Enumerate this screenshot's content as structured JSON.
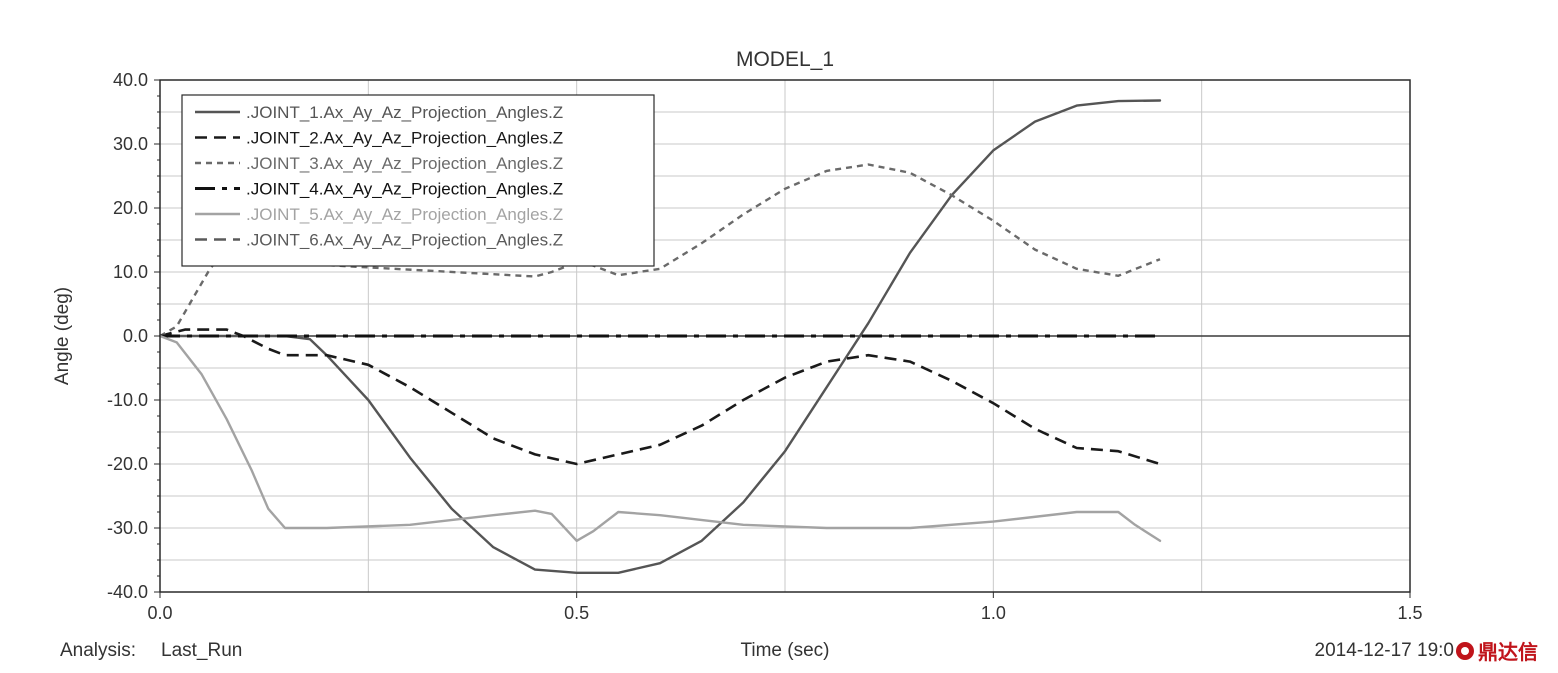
{
  "chart_data": {
    "type": "line",
    "title": "MODEL_1",
    "xlabel": "Time (sec)",
    "ylabel": "Angle (deg)",
    "xlim": [
      0.0,
      1.5
    ],
    "ylim": [
      -40.0,
      40.0
    ],
    "x_ticks": [
      "0.0",
      "0.5",
      "1.0",
      "1.5"
    ],
    "y_ticks": [
      "40.0",
      "30.0",
      "20.0",
      "10.0",
      "0.0",
      "-10.0",
      "-20.0",
      "-30.0",
      "-40.0"
    ],
    "grid": true,
    "legend_position": "top-left",
    "series": [
      {
        "name": ".JOINT_1.Ax_Ay_Az_Projection_Angles.Z",
        "color": "#555555",
        "dash": "solid",
        "points": [
          [
            0.0,
            0.0
          ],
          [
            0.1,
            0.0
          ],
          [
            0.15,
            0.0
          ],
          [
            0.18,
            -0.5
          ],
          [
            0.2,
            -3.0
          ],
          [
            0.25,
            -10.0
          ],
          [
            0.3,
            -19.0
          ],
          [
            0.35,
            -27.0
          ],
          [
            0.4,
            -33.0
          ],
          [
            0.45,
            -36.5
          ],
          [
            0.5,
            -37.0
          ],
          [
            0.55,
            -37.0
          ],
          [
            0.6,
            -35.5
          ],
          [
            0.65,
            -32.0
          ],
          [
            0.7,
            -26.0
          ],
          [
            0.75,
            -18.0
          ],
          [
            0.8,
            -8.0
          ],
          [
            0.85,
            2.0
          ],
          [
            0.9,
            13.0
          ],
          [
            0.95,
            22.0
          ],
          [
            1.0,
            29.0
          ],
          [
            1.05,
            33.5
          ],
          [
            1.1,
            36.0
          ],
          [
            1.15,
            36.7
          ],
          [
            1.2,
            36.8
          ]
        ]
      },
      {
        "name": ".JOINT_2.Ax_Ay_Az_Projection_Angles.Z",
        "color": "#1a1a1a",
        "dash": "dashed",
        "points": [
          [
            0.0,
            0.0
          ],
          [
            0.03,
            1.0
          ],
          [
            0.08,
            1.0
          ],
          [
            0.1,
            0.0
          ],
          [
            0.13,
            -2.0
          ],
          [
            0.15,
            -3.0
          ],
          [
            0.2,
            -3.0
          ],
          [
            0.25,
            -4.5
          ],
          [
            0.3,
            -8.0
          ],
          [
            0.35,
            -12.0
          ],
          [
            0.4,
            -16.0
          ],
          [
            0.45,
            -18.5
          ],
          [
            0.5,
            -20.0
          ],
          [
            0.55,
            -18.5
          ],
          [
            0.6,
            -17.0
          ],
          [
            0.65,
            -14.0
          ],
          [
            0.7,
            -10.0
          ],
          [
            0.75,
            -6.5
          ],
          [
            0.8,
            -4.0
          ],
          [
            0.85,
            -3.0
          ],
          [
            0.9,
            -4.0
          ],
          [
            0.95,
            -7.0
          ],
          [
            1.0,
            -10.5
          ],
          [
            1.05,
            -14.5
          ],
          [
            1.1,
            -17.5
          ],
          [
            1.15,
            -18.0
          ],
          [
            1.2,
            -20.0
          ]
        ]
      },
      {
        "name": ".JOINT_3.Ax_Ay_Az_Projection_Angles.Z",
        "color": "#6a6a6a",
        "dash": "dotted",
        "points": [
          [
            0.0,
            0.0
          ],
          [
            0.02,
            1.5
          ],
          [
            0.04,
            6.0
          ],
          [
            0.06,
            10.5
          ],
          [
            0.07,
            12.0
          ],
          [
            0.45,
            9.3
          ],
          [
            0.47,
            10.0
          ],
          [
            0.5,
            11.5
          ],
          [
            0.52,
            11.0
          ],
          [
            0.55,
            9.5
          ],
          [
            0.6,
            10.5
          ],
          [
            0.65,
            14.5
          ],
          [
            0.7,
            19.0
          ],
          [
            0.75,
            23.0
          ],
          [
            0.8,
            25.8
          ],
          [
            0.85,
            26.8
          ],
          [
            0.9,
            25.5
          ],
          [
            0.95,
            22.0
          ],
          [
            1.0,
            18.0
          ],
          [
            1.05,
            13.5
          ],
          [
            1.1,
            10.5
          ],
          [
            1.15,
            9.4
          ],
          [
            1.2,
            12.0
          ]
        ]
      },
      {
        "name": ".JOINT_4.Ax_Ay_Az_Projection_Angles.Z",
        "color": "#111111",
        "dash": "dashdot",
        "points": [
          [
            0.0,
            0.0
          ],
          [
            1.2,
            0.0
          ]
        ]
      },
      {
        "name": ".JOINT_5.Ax_Ay_Az_Projection_Angles.Z",
        "color": "#a3a3a3",
        "dash": "solid",
        "points": [
          [
            0.0,
            0.0
          ],
          [
            0.02,
            -1.0
          ],
          [
            0.05,
            -6.0
          ],
          [
            0.08,
            -13.0
          ],
          [
            0.11,
            -21.0
          ],
          [
            0.13,
            -27.0
          ],
          [
            0.15,
            -30.0
          ],
          [
            0.2,
            -30.0
          ],
          [
            0.3,
            -29.5
          ],
          [
            0.4,
            -28.0
          ],
          [
            0.45,
            -27.3
          ],
          [
            0.47,
            -27.8
          ],
          [
            0.5,
            -32.0
          ],
          [
            0.52,
            -30.5
          ],
          [
            0.55,
            -27.5
          ],
          [
            0.6,
            -28.0
          ],
          [
            0.7,
            -29.5
          ],
          [
            0.8,
            -30.0
          ],
          [
            0.9,
            -30.0
          ],
          [
            1.0,
            -29.0
          ],
          [
            1.1,
            -27.5
          ],
          [
            1.15,
            -27.5
          ],
          [
            1.17,
            -29.5
          ],
          [
            1.2,
            -32.0
          ]
        ]
      },
      {
        "name": ".JOINT_6.Ax_Ay_Az_Projection_Angles.Z",
        "color": "#5a5a5a",
        "dash": "dashed",
        "points": []
      }
    ]
  },
  "footer": {
    "analysis_label": "Analysis:",
    "analysis_value": "Last_Run",
    "timestamp": "2014-12-17 19:0"
  },
  "watermark": {
    "text": "鼎达信"
  }
}
